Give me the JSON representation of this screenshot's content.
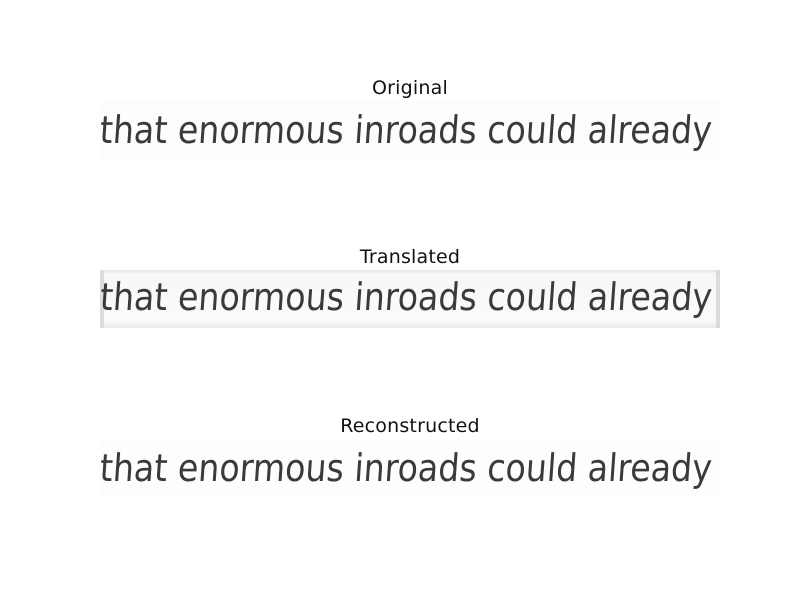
{
  "panels": [
    {
      "title": "Original",
      "text": "that enormous inroads could already"
    },
    {
      "title": "Translated",
      "text": "that enormous inroads could already"
    },
    {
      "title": "Reconstructed",
      "text": "that enormous inroads could already"
    }
  ],
  "colors": {
    "ink": "#3a3a3a",
    "background": "#ffffff"
  }
}
